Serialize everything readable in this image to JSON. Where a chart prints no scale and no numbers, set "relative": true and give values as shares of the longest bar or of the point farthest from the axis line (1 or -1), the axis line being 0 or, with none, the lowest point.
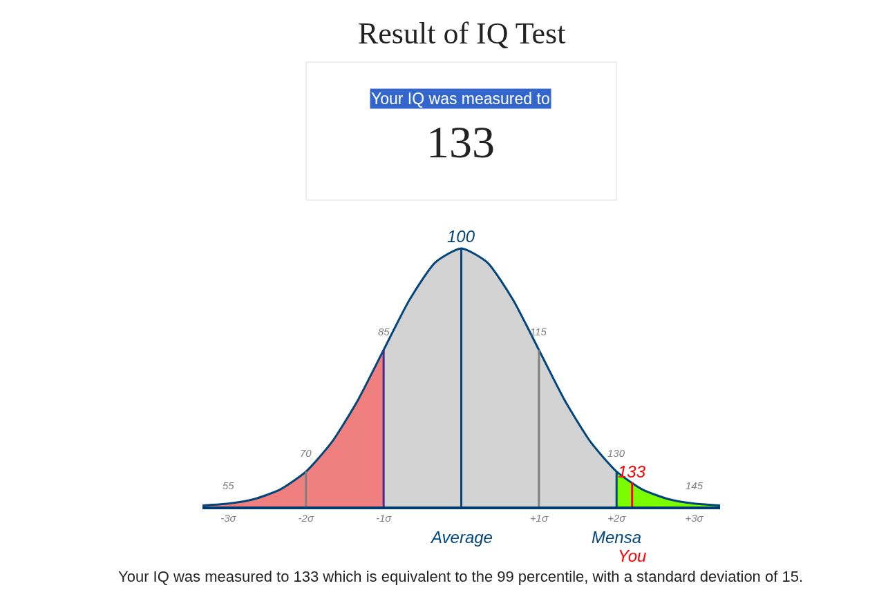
{
  "chart_data": {
    "type": "area",
    "title": "Result of IQ Test",
    "relative": true,
    "grid": false,
    "marker": "none",
    "xlim": [
      -3.333,
      3.333
    ],
    "xticks": [
      {
        "value": -3,
        "label": "-3σ"
      },
      {
        "value": -2,
        "label": "-2σ"
      },
      {
        "value": -1,
        "label": "-1σ"
      },
      {
        "value": 0,
        "label": null
      },
      {
        "value": 1,
        "label": "+1σ"
      },
      {
        "value": 2,
        "label": "+2σ"
      },
      {
        "value": 3,
        "label": "+3σ"
      }
    ],
    "series": [
      {
        "color": "#f08080",
        "x": [
          -3.333,
          -3,
          -2.667,
          -2.333,
          -2,
          -1.667,
          -1.333,
          -1
        ],
        "values": [
          0.0039,
          0.0111,
          0.0286,
          0.0657,
          0.1353,
          0.2494,
          0.4111,
          0.6065
        ]
      },
      {
        "color": "#d3d3d3",
        "x": [
          -1,
          -0.667,
          -0.333,
          0,
          0.333,
          0.667,
          1,
          1.333,
          1.667,
          2
        ],
        "values": [
          0.6065,
          0.8007,
          0.946,
          1,
          0.946,
          0.8007,
          0.6065,
          0.4111,
          0.2494,
          0.1353
        ]
      },
      {
        "color": "#7cfc00",
        "x": [
          2,
          2.333,
          2.667,
          3,
          3.333
        ],
        "values": [
          0.1353,
          0.0657,
          0.0286,
          0.0111,
          0.0039
        ]
      },
      {
        "type": "line",
        "color": "#00457c",
        "x": [
          -3.333,
          -3,
          -2.667,
          -2.333,
          -2,
          -1.667,
          -1.333,
          -1,
          -0.667,
          -0.333,
          0,
          0.333,
          0.667,
          1,
          1.333,
          1.667,
          2,
          2.333,
          2.667,
          3,
          3.333
        ],
        "values": [
          0.0039,
          0.0111,
          0.0286,
          0.0657,
          0.1353,
          0.2494,
          0.4111,
          0.6065,
          0.8007,
          0.946,
          1,
          0.946,
          0.8007,
          0.6065,
          0.4111,
          0.2494,
          0.1353,
          0.0657,
          0.0286,
          0.0111,
          0.0039
        ]
      }
    ],
    "ref_lines": [
      {
        "axis": "x",
        "value": -2,
        "color": "#808080"
      },
      {
        "axis": "x",
        "value": -1,
        "color": "#4b2a8c"
      },
      {
        "axis": "x",
        "value": 0,
        "color": "#00457c",
        "label": "Average"
      },
      {
        "axis": "x",
        "value": 1,
        "color": "#808080"
      },
      {
        "axis": "x",
        "value": 2,
        "color": "#00457c",
        "label": "Mensa"
      },
      {
        "axis": "x",
        "value": 2.2,
        "color": "#ff0000",
        "label": "You"
      }
    ],
    "annotations": [
      "Your IQ was measured to",
      "133",
      {
        "text": "55",
        "x": -3,
        "y": 0.0111
      },
      {
        "text": "70",
        "x": -2,
        "y": 0.1353
      },
      {
        "text": "85",
        "x": -1,
        "y": 0.6065
      },
      {
        "text": "100",
        "x": 0,
        "y": 1
      },
      {
        "text": "115",
        "x": 1,
        "y": 0.6065
      },
      {
        "text": "130",
        "x": 2,
        "y": 0.1353
      },
      {
        "text": "133",
        "x": 2.2,
        "y": 0.0889
      },
      {
        "text": "145",
        "x": 3,
        "y": 0.0111
      },
      "Your IQ was measured to 133 which is equivalent to the 99 percentile, with a standard deviation of 15."
    ]
  }
}
